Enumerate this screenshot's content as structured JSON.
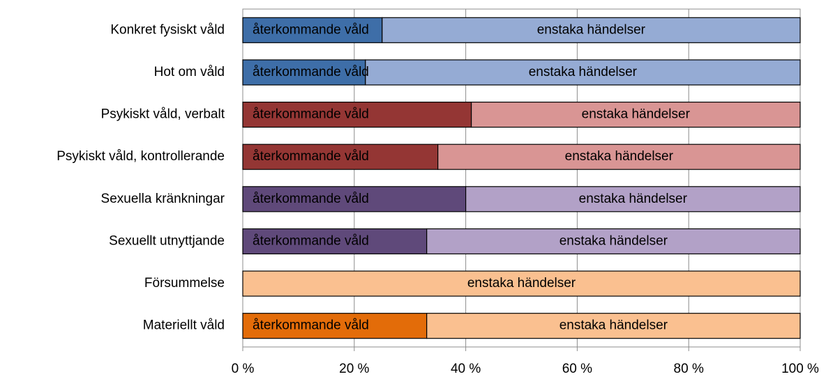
{
  "chart_data": {
    "type": "stacked-barh",
    "categories": [
      "Konkret fysiskt våld",
      "Hot om våld",
      "Psykiskt våld, verbalt",
      "Psykiskt våld, kontrollerande",
      "Sexuella kränkningar",
      "Sexuellt utnyttjande",
      "Försummelse",
      "Materiellt våld"
    ],
    "series": [
      {
        "name": "återkommande våld",
        "values": [
          25,
          22,
          41,
          35,
          40,
          33,
          0,
          33
        ],
        "colors": [
          "#3e6ea8",
          "#3e6ea8",
          "#943634",
          "#943634",
          "#5f497a",
          "#5f497a",
          "#e36c09",
          "#e36c09"
        ]
      },
      {
        "name": "enstaka händelser",
        "values": [
          75,
          78,
          59,
          65,
          60,
          67,
          100,
          67
        ],
        "colors": [
          "#95abd4",
          "#95abd4",
          "#d99594",
          "#d99594",
          "#b2a1c7",
          "#b2a1c7",
          "#fac090",
          "#fac090"
        ]
      }
    ],
    "xlim": [
      0,
      100
    ],
    "xticks": [
      {
        "value": 0,
        "label": "0 %"
      },
      {
        "value": 20,
        "label": "20 %"
      },
      {
        "value": 40,
        "label": "40 %"
      },
      {
        "value": 60,
        "label": "60 %"
      },
      {
        "value": 80,
        "label": "80 %"
      },
      {
        "value": 100,
        "label": "100 %"
      }
    ],
    "grid": true
  }
}
